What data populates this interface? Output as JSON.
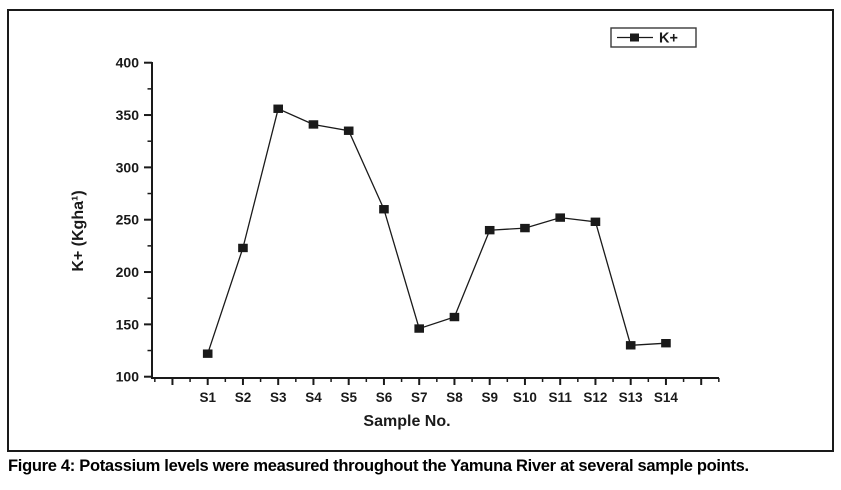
{
  "figure": {
    "caption": "Figure 4: Potassium levels were measured throughout the Yamuna River at several sample points."
  },
  "chart_data": {
    "type": "line",
    "title": "",
    "xlabel": "Sample No.",
    "ylabel": "K+ (Kgha¹)",
    "categories": [
      "S1",
      "S2",
      "S3",
      "S4",
      "S5",
      "S6",
      "S7",
      "S8",
      "S9",
      "S10",
      "S11",
      "S12",
      "S13",
      "S14"
    ],
    "series": [
      {
        "name": "K+",
        "marker": "filled-square",
        "color": "#1a1a1a",
        "values": [
          122,
          223,
          356,
          341,
          335,
          260,
          146,
          157,
          240,
          242,
          252,
          248,
          130,
          132
        ]
      }
    ],
    "ylim": [
      100,
      400
    ],
    "yticks": [
      100,
      150,
      200,
      250,
      300,
      350,
      400
    ],
    "y_minor_ticks": [
      125,
      175,
      225,
      275,
      325,
      375
    ],
    "grid": false,
    "legend": {
      "position": "top-right",
      "entries": [
        "K+"
      ]
    },
    "axis_color": "#1a1a1a",
    "background": "#ffffff"
  }
}
